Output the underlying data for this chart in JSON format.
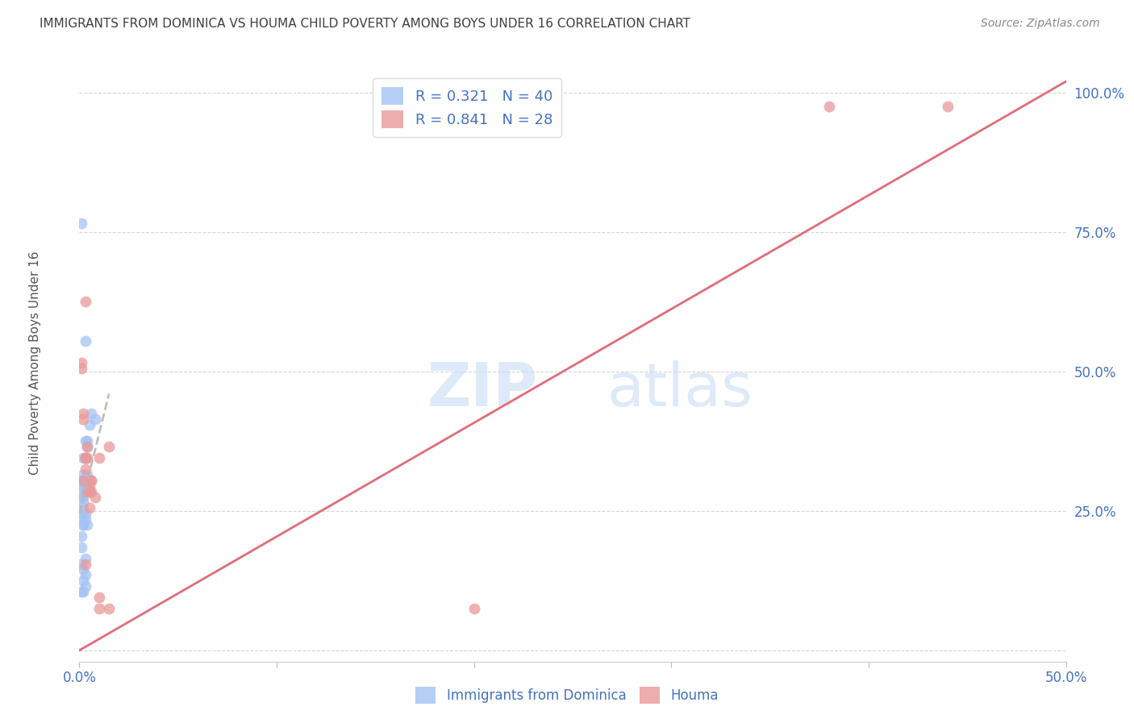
{
  "title": "IMMIGRANTS FROM DOMINICA VS HOUMA CHILD POVERTY AMONG BOYS UNDER 16 CORRELATION CHART",
  "source": "Source: ZipAtlas.com",
  "ylabel": "Child Poverty Among Boys Under 16",
  "xlim": [
    0,
    0.5
  ],
  "ylim": [
    -0.02,
    1.05
  ],
  "xticks": [
    0.0,
    0.1,
    0.2,
    0.3,
    0.4,
    0.5
  ],
  "xticklabels": [
    "0.0%",
    "",
    "",
    "",
    "",
    "50.0%"
  ],
  "yticks": [
    0.0,
    0.25,
    0.5,
    0.75,
    1.0
  ],
  "yticklabels": [
    "",
    "25.0%",
    "50.0%",
    "75.0%",
    "100.0%"
  ],
  "watermark_zip": "ZIP",
  "watermark_atlas": "atlas",
  "legend_r1": "R = 0.321",
  "legend_n1": "N = 40",
  "legend_r2": "R = 0.841",
  "legend_n2": "N = 28",
  "blue_color": "#a4c2f4",
  "pink_color": "#ea9999",
  "blue_line_color": "#b7b7b7",
  "pink_line_color": "#e06c7a",
  "grid_color": "#cccccc",
  "title_color": "#404040",
  "axis_label_color": "#4472c4",
  "legend_label_color": "#4472c4",
  "blue_scatter_x": [
    0.001,
    0.002,
    0.003,
    0.004,
    0.002,
    0.001,
    0.003,
    0.002,
    0.004,
    0.001,
    0.002,
    0.001,
    0.003,
    0.002,
    0.001,
    0.002,
    0.003,
    0.001,
    0.002,
    0.003,
    0.004,
    0.003,
    0.005,
    0.006,
    0.001,
    0.002,
    0.003,
    0.004,
    0.003,
    0.002,
    0.008,
    0.002,
    0.003,
    0.001,
    0.002,
    0.001,
    0.003,
    0.002,
    0.003,
    0.001
  ],
  "blue_scatter_y": [
    0.765,
    0.345,
    0.555,
    0.375,
    0.305,
    0.285,
    0.295,
    0.275,
    0.315,
    0.245,
    0.265,
    0.275,
    0.285,
    0.305,
    0.235,
    0.255,
    0.345,
    0.295,
    0.315,
    0.295,
    0.365,
    0.375,
    0.405,
    0.425,
    0.205,
    0.225,
    0.245,
    0.225,
    0.235,
    0.225,
    0.415,
    0.125,
    0.115,
    0.105,
    0.105,
    0.155,
    0.165,
    0.145,
    0.135,
    0.185
  ],
  "pink_scatter_x": [
    0.001,
    0.002,
    0.003,
    0.004,
    0.005,
    0.006,
    0.008,
    0.002,
    0.003,
    0.005,
    0.01,
    0.001,
    0.002,
    0.003,
    0.004,
    0.005,
    0.006,
    0.004,
    0.006,
    0.003,
    0.38,
    0.44,
    0.01,
    0.015,
    0.003,
    0.01,
    0.015,
    0.2
  ],
  "pink_scatter_y": [
    0.515,
    0.425,
    0.345,
    0.365,
    0.295,
    0.285,
    0.275,
    0.415,
    0.345,
    0.255,
    0.345,
    0.505,
    0.305,
    0.325,
    0.345,
    0.285,
    0.305,
    0.285,
    0.305,
    0.625,
    0.975,
    0.975,
    0.075,
    0.365,
    0.155,
    0.095,
    0.075,
    0.075
  ],
  "blue_line_x": [
    0.0,
    0.015
  ],
  "blue_line_y": [
    0.245,
    0.46
  ],
  "pink_line_x": [
    0.0,
    0.5
  ],
  "pink_line_y": [
    0.0,
    1.02
  ]
}
